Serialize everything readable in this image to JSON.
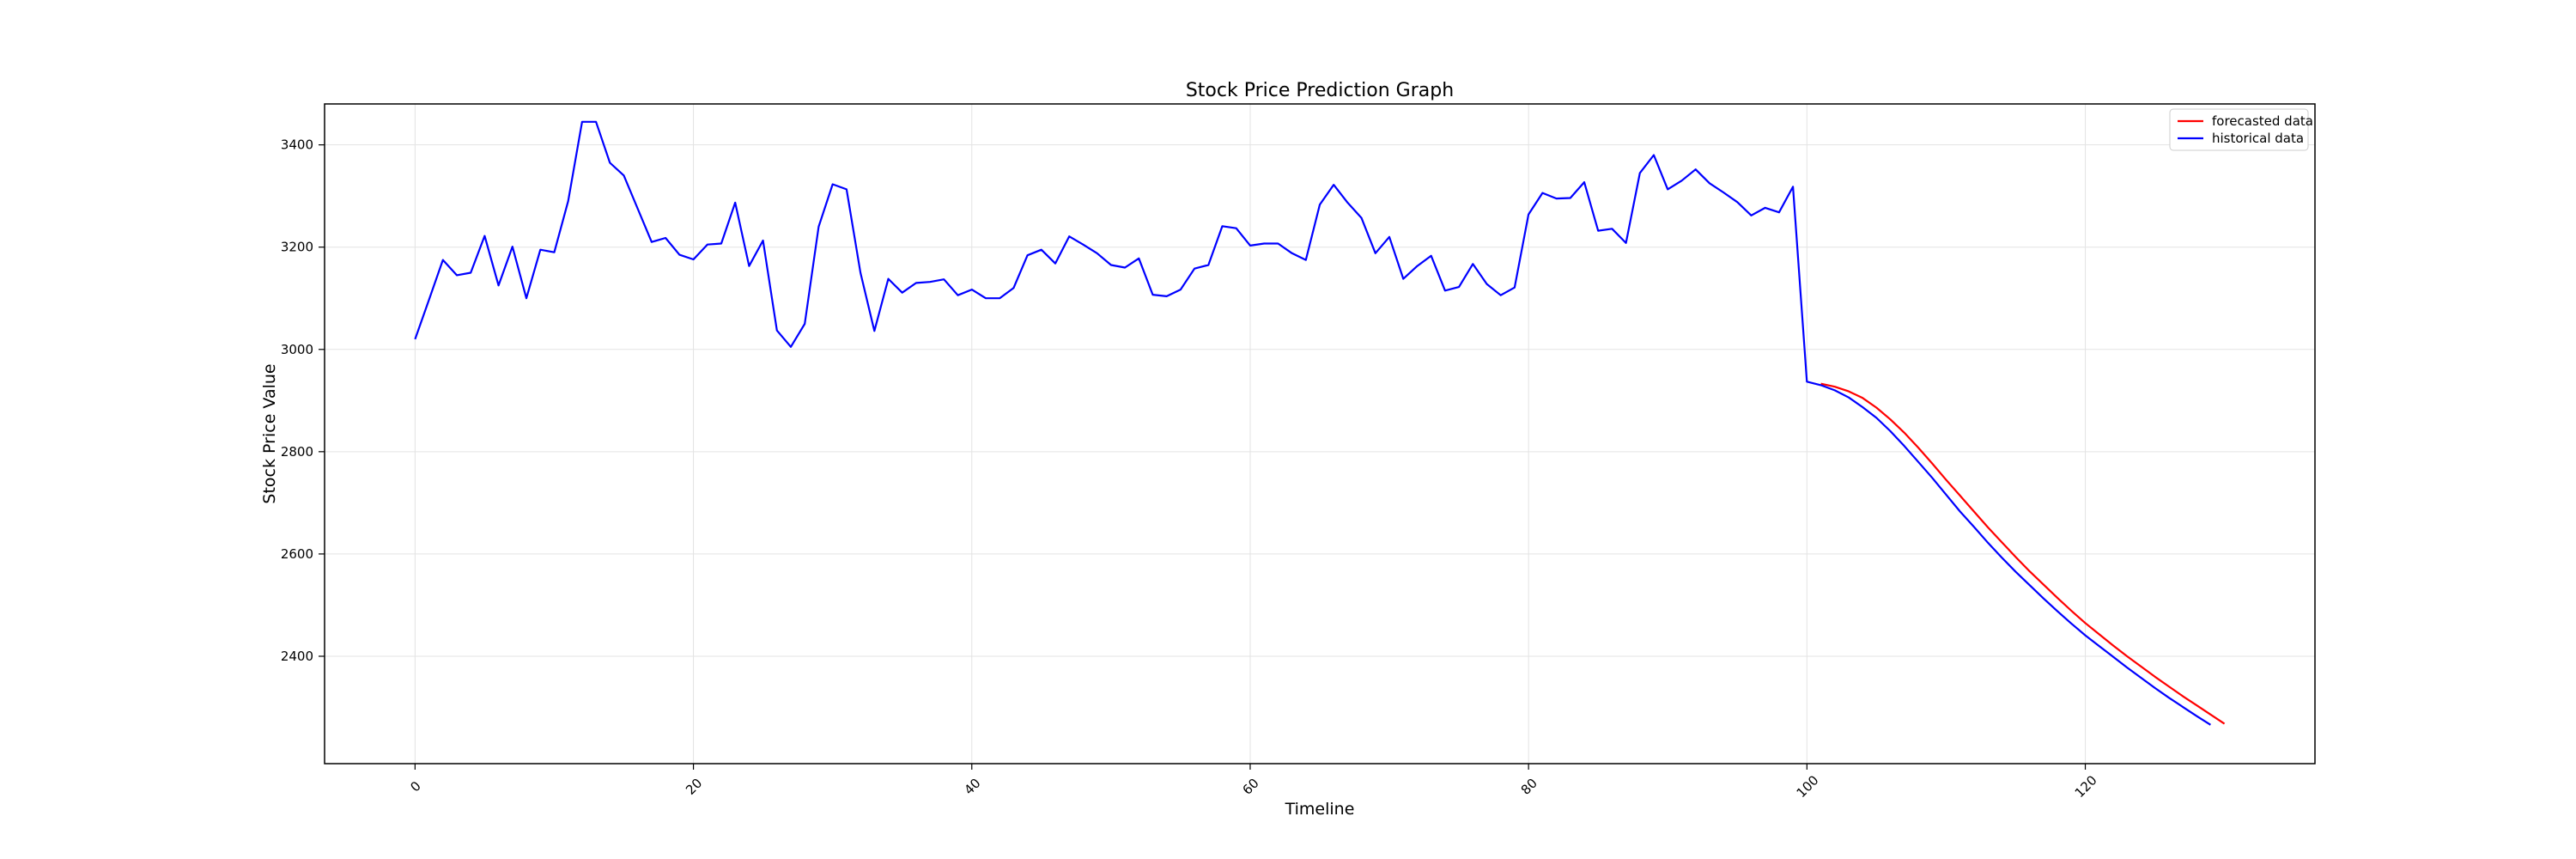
{
  "chart_data": {
    "type": "line",
    "title": "Stock Price Prediction Graph",
    "xlabel": "Timeline",
    "ylabel": "Stock Price Value",
    "xlim": [
      -6.5,
      136.5
    ],
    "ylim": [
      2190,
      3480
    ],
    "xticks": [
      0,
      20,
      40,
      60,
      80,
      100,
      120
    ],
    "yticks": [
      2400,
      2600,
      2800,
      3000,
      3200,
      3400
    ],
    "grid": true,
    "legend_position": "upper right",
    "series": [
      {
        "name": "forecasted data",
        "color": "#ff0000",
        "x": [
          101,
          102,
          103,
          104,
          105,
          106,
          107,
          108,
          109,
          110,
          111,
          112,
          113,
          114,
          115,
          116,
          117,
          118,
          119,
          120,
          121,
          122,
          123,
          124,
          125,
          126,
          127,
          128,
          129,
          130
        ],
        "values": [
          2933,
          2927,
          2918,
          2905,
          2886,
          2863,
          2837,
          2808,
          2777,
          2745,
          2714,
          2683,
          2652,
          2623,
          2594,
          2566,
          2540,
          2514,
          2489,
          2465,
          2443,
          2421,
          2400,
          2380,
          2360,
          2341,
          2322,
          2304,
          2286,
          2268
        ]
      },
      {
        "name": "historical data",
        "color": "#0000ff",
        "x": [
          0,
          1,
          2,
          3,
          4,
          5,
          6,
          7,
          8,
          9,
          10,
          11,
          12,
          13,
          14,
          15,
          16,
          17,
          18,
          19,
          20,
          21,
          22,
          23,
          24,
          25,
          26,
          27,
          28,
          29,
          30,
          31,
          32,
          33,
          34,
          35,
          36,
          37,
          38,
          39,
          40,
          41,
          42,
          43,
          44,
          45,
          46,
          47,
          48,
          49,
          50,
          51,
          52,
          53,
          54,
          55,
          56,
          57,
          58,
          59,
          60,
          61,
          62,
          63,
          64,
          65,
          66,
          67,
          68,
          69,
          70,
          71,
          72,
          73,
          74,
          75,
          76,
          77,
          78,
          79,
          80,
          81,
          82,
          83,
          84,
          85,
          86,
          87,
          88,
          89,
          90,
          91,
          92,
          93,
          94,
          95,
          96,
          97,
          98,
          99,
          100,
          101,
          102,
          103,
          104,
          105,
          106,
          107,
          108,
          109,
          110,
          111,
          112,
          113,
          114,
          115,
          116,
          117,
          118,
          119,
          120,
          121,
          122,
          123,
          124,
          125,
          126,
          127,
          128,
          129
        ],
        "values": [
          3020,
          3097,
          3175,
          3145,
          3150,
          3222,
          3125,
          3201,
          3100,
          3195,
          3190,
          3290,
          3445,
          3445,
          3365,
          3340,
          3275,
          3210,
          3218,
          3185,
          3176,
          3205,
          3207,
          3287,
          3163,
          3213,
          3037,
          3005,
          3050,
          3240,
          3323,
          3313,
          3150,
          3036,
          3138,
          3111,
          3130,
          3132,
          3137,
          3106,
          3117,
          3100,
          3100,
          3120,
          3184,
          3195,
          3168,
          3221,
          3205,
          3188,
          3165,
          3160,
          3178,
          3107,
          3104,
          3117,
          3158,
          3165,
          3241,
          3237,
          3203,
          3207,
          3207,
          3188,
          3175,
          3283,
          3322,
          3287,
          3257,
          3188,
          3220,
          3138,
          3163,
          3183,
          3115,
          3122,
          3167,
          3128,
          3106,
          3121,
          3264,
          3306,
          3295,
          3296,
          3327,
          3232,
          3236,
          3208,
          3345,
          3380,
          3313,
          3330,
          3352,
          3325,
          3307,
          3288,
          3262,
          3277,
          3268,
          3318,
          2937,
          2930,
          2920,
          2906,
          2887,
          2866,
          2840,
          2811,
          2780,
          2749,
          2716,
          2683,
          2653,
          2622,
          2593,
          2565,
          2539,
          2513,
          2488,
          2464,
          2441,
          2420,
          2399,
          2378,
          2358,
          2338,
          2319,
          2301,
          2283,
          2266
        ]
      }
    ]
  }
}
